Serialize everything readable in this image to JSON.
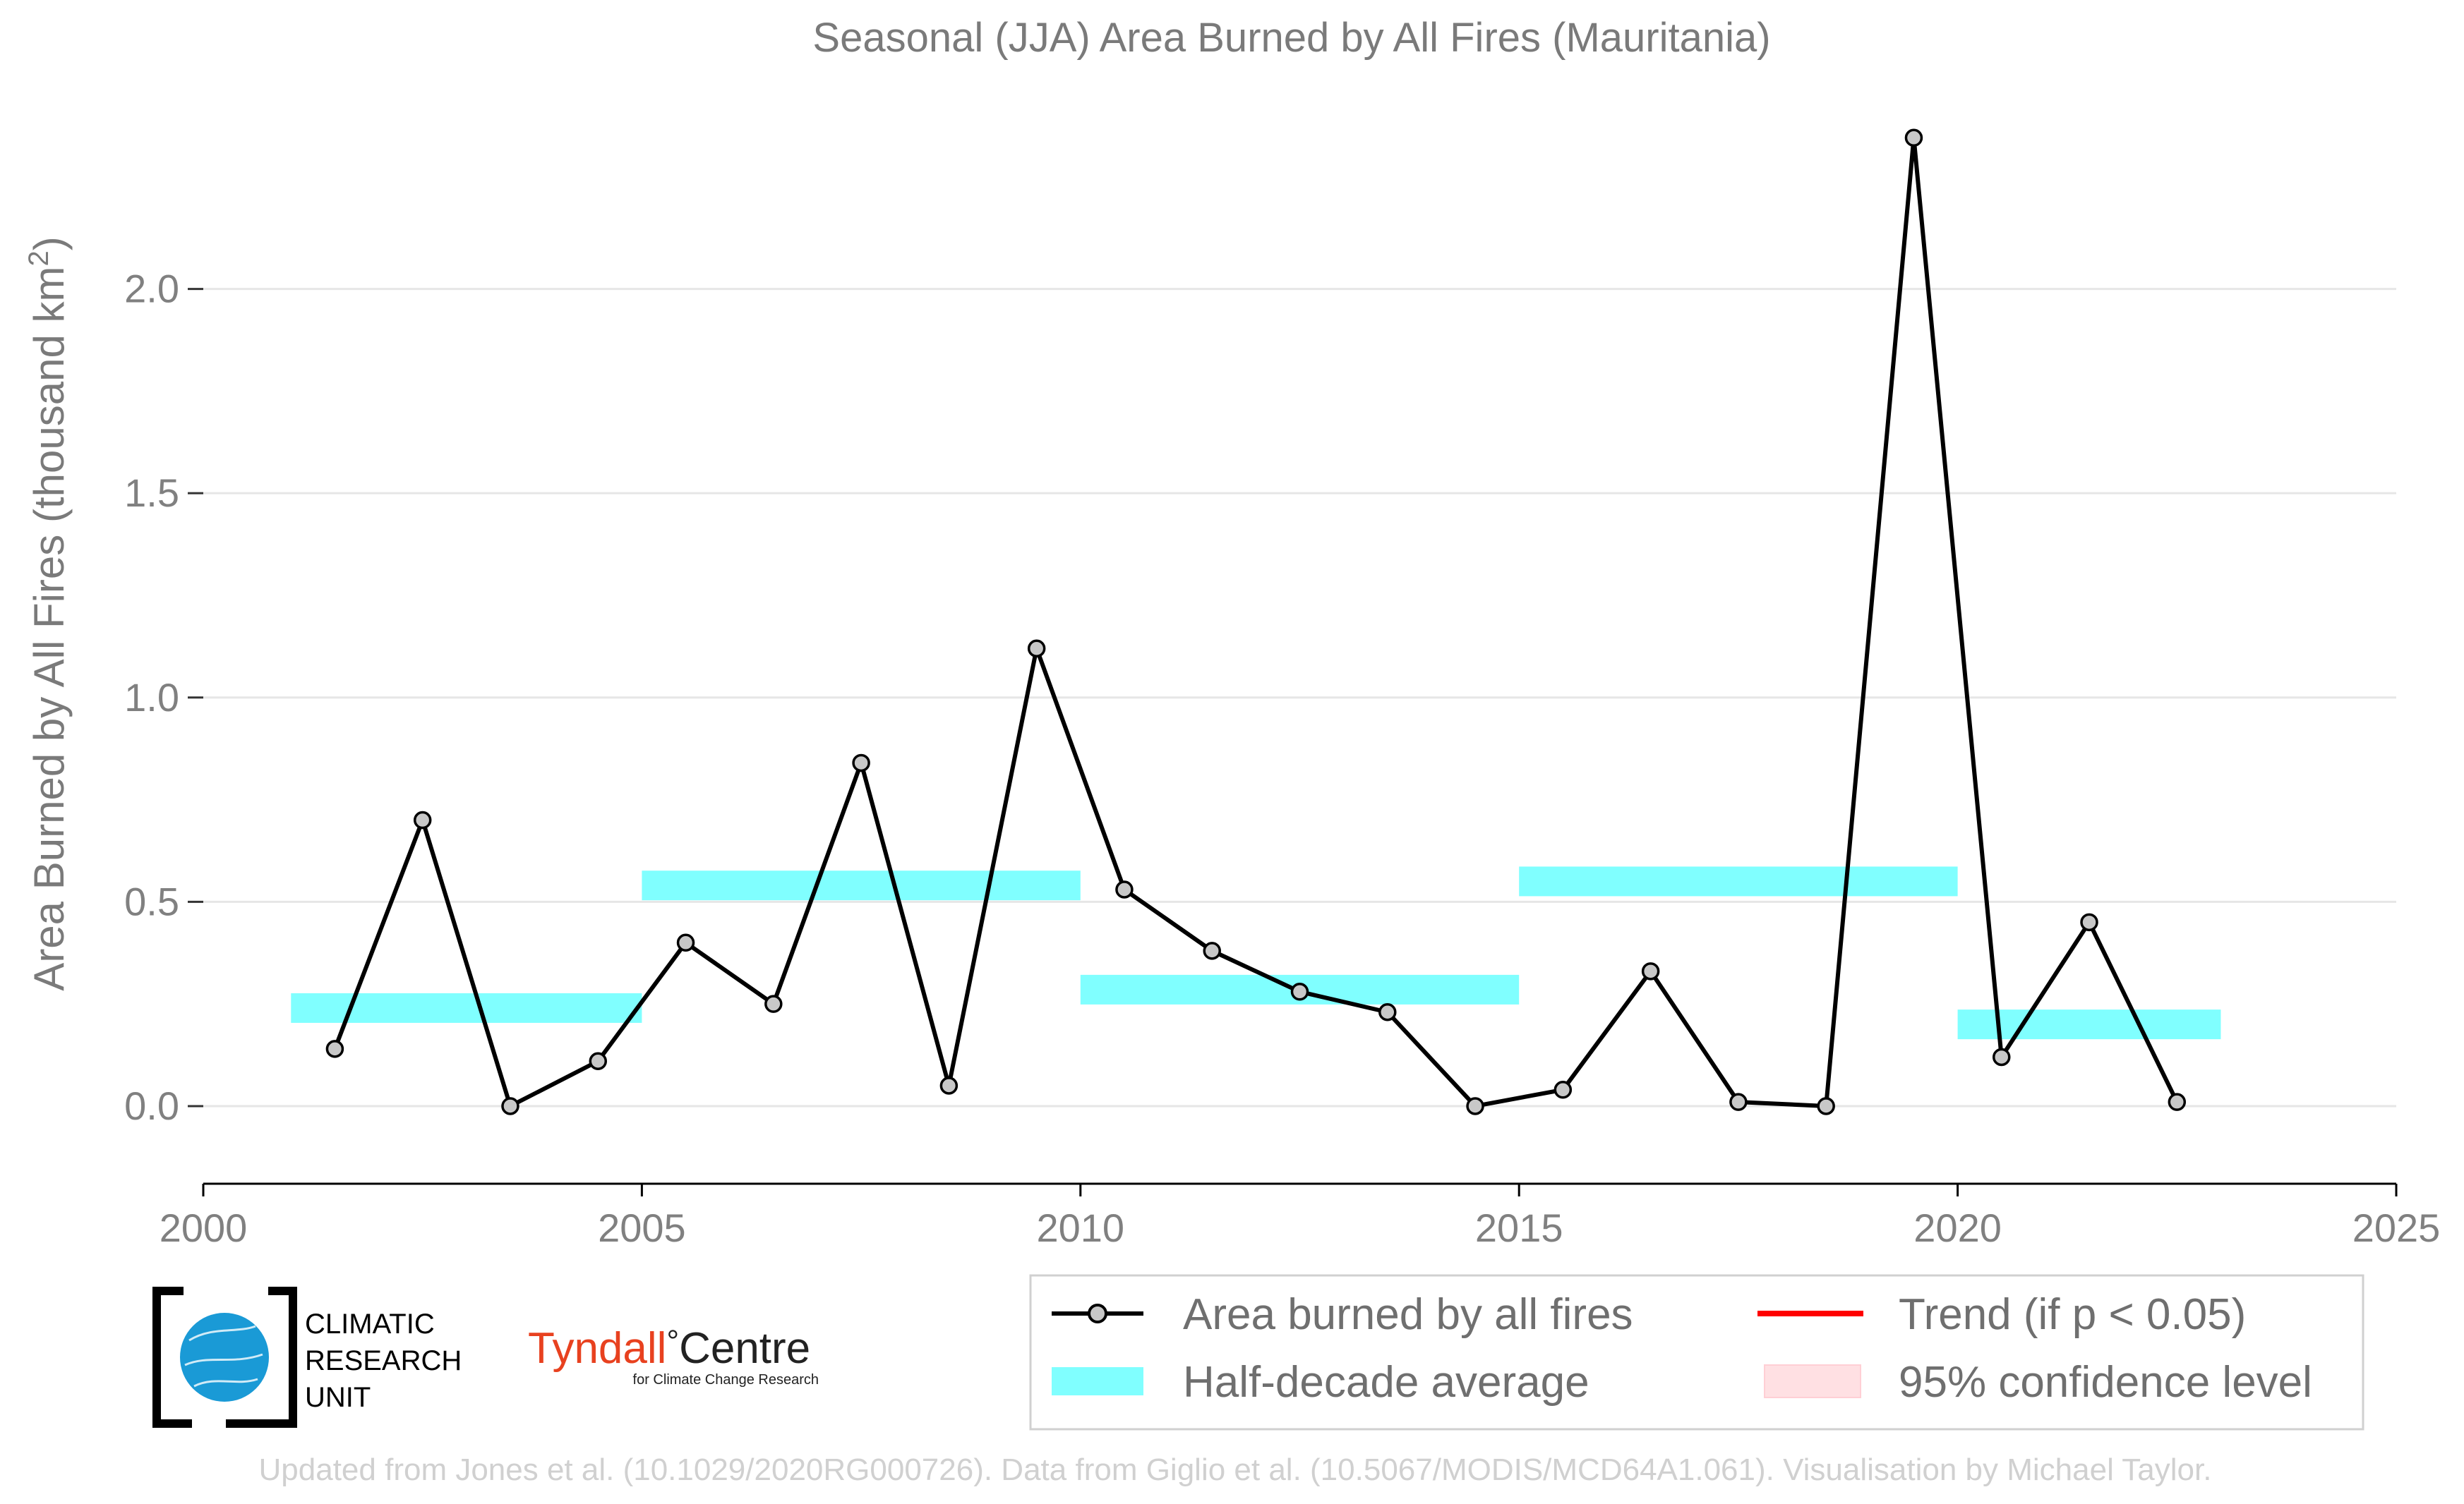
{
  "chart_data": {
    "type": "line",
    "title": "Seasonal (JJA) Area Burned by All Fires (Mauritania)",
    "xlabel": "",
    "ylabel": "Area Burned by All Fires (thousand km",
    "ylabel_sup": "2",
    "ylabel_close": ")",
    "xlim": [
      2000,
      2025
    ],
    "ylim": [
      -0.19,
      2.5
    ],
    "x_ticks": [
      2000,
      2005,
      2010,
      2015,
      2020,
      2025
    ],
    "x_tick_labels": [
      "2000",
      "2005",
      "2010",
      "2015",
      "2020",
      "2025"
    ],
    "y_ticks": [
      0.0,
      0.5,
      1.0,
      1.5,
      2.0
    ],
    "y_tick_labels": [
      "0.0",
      "0.5",
      "1.0",
      "1.5",
      "2.0"
    ],
    "grid": "horizontal",
    "series": [
      {
        "name": "Area burned by all fires",
        "color": "#000000",
        "marker_fill": "#c8c8c8",
        "x": [
          2001.5,
          2002.5,
          2003.5,
          2004.5,
          2005.5,
          2006.5,
          2007.5,
          2008.5,
          2009.5,
          2010.5,
          2011.5,
          2012.5,
          2013.5,
          2014.5,
          2015.5,
          2016.5,
          2017.5,
          2018.5,
          2019.5,
          2020.5,
          2021.5,
          2022.5
        ],
        "y": [
          0.14,
          0.7,
          0.0,
          0.11,
          0.4,
          0.25,
          0.84,
          0.05,
          1.12,
          0.53,
          0.38,
          0.28,
          0.23,
          0.0,
          0.04,
          0.33,
          0.01,
          0.0,
          2.37,
          0.12,
          0.45,
          0.01
        ]
      }
    ],
    "half_decade_average": {
      "name": "Half-decade average",
      "color": "#80ffff",
      "segments": [
        {
          "x0": 2001,
          "x1": 2005,
          "y": 0.24
        },
        {
          "x0": 2005,
          "x1": 2010,
          "y": 0.54
        },
        {
          "x0": 2010,
          "x1": 2015,
          "y": 0.285
        },
        {
          "x0": 2015,
          "x1": 2020,
          "y": 0.55
        },
        {
          "x0": 2020,
          "x1": 2023,
          "y": 0.2
        }
      ]
    },
    "legend": {
      "placement": "bottom-right",
      "entries": [
        {
          "label": "Area burned by all fires",
          "kind": "line-marker",
          "color": "#000000"
        },
        {
          "label": "Trend (if p < 0.05)",
          "kind": "line",
          "color": "#ff0000"
        },
        {
          "label": "Half-decade average",
          "kind": "patch",
          "color": "#80ffff"
        },
        {
          "label": "95% confidence level",
          "kind": "patch",
          "color": "#ffe0e3"
        }
      ]
    }
  },
  "logos": {
    "cru_line1": "CLIMATIC",
    "cru_line2": "RESEARCH",
    "cru_line3": "UNIT",
    "tyndall_name": "Tyndall",
    "tyndall_degree": "°",
    "tyndall_centre": "Centre",
    "tyndall_sub": "for Climate Change Research"
  },
  "footer": "Updated from Jones et al. (10.1029/2020RG000726). Data from Giglio et al. (10.5067/MODIS/MCD64A1.061). Visualisation by Michael Taylor."
}
